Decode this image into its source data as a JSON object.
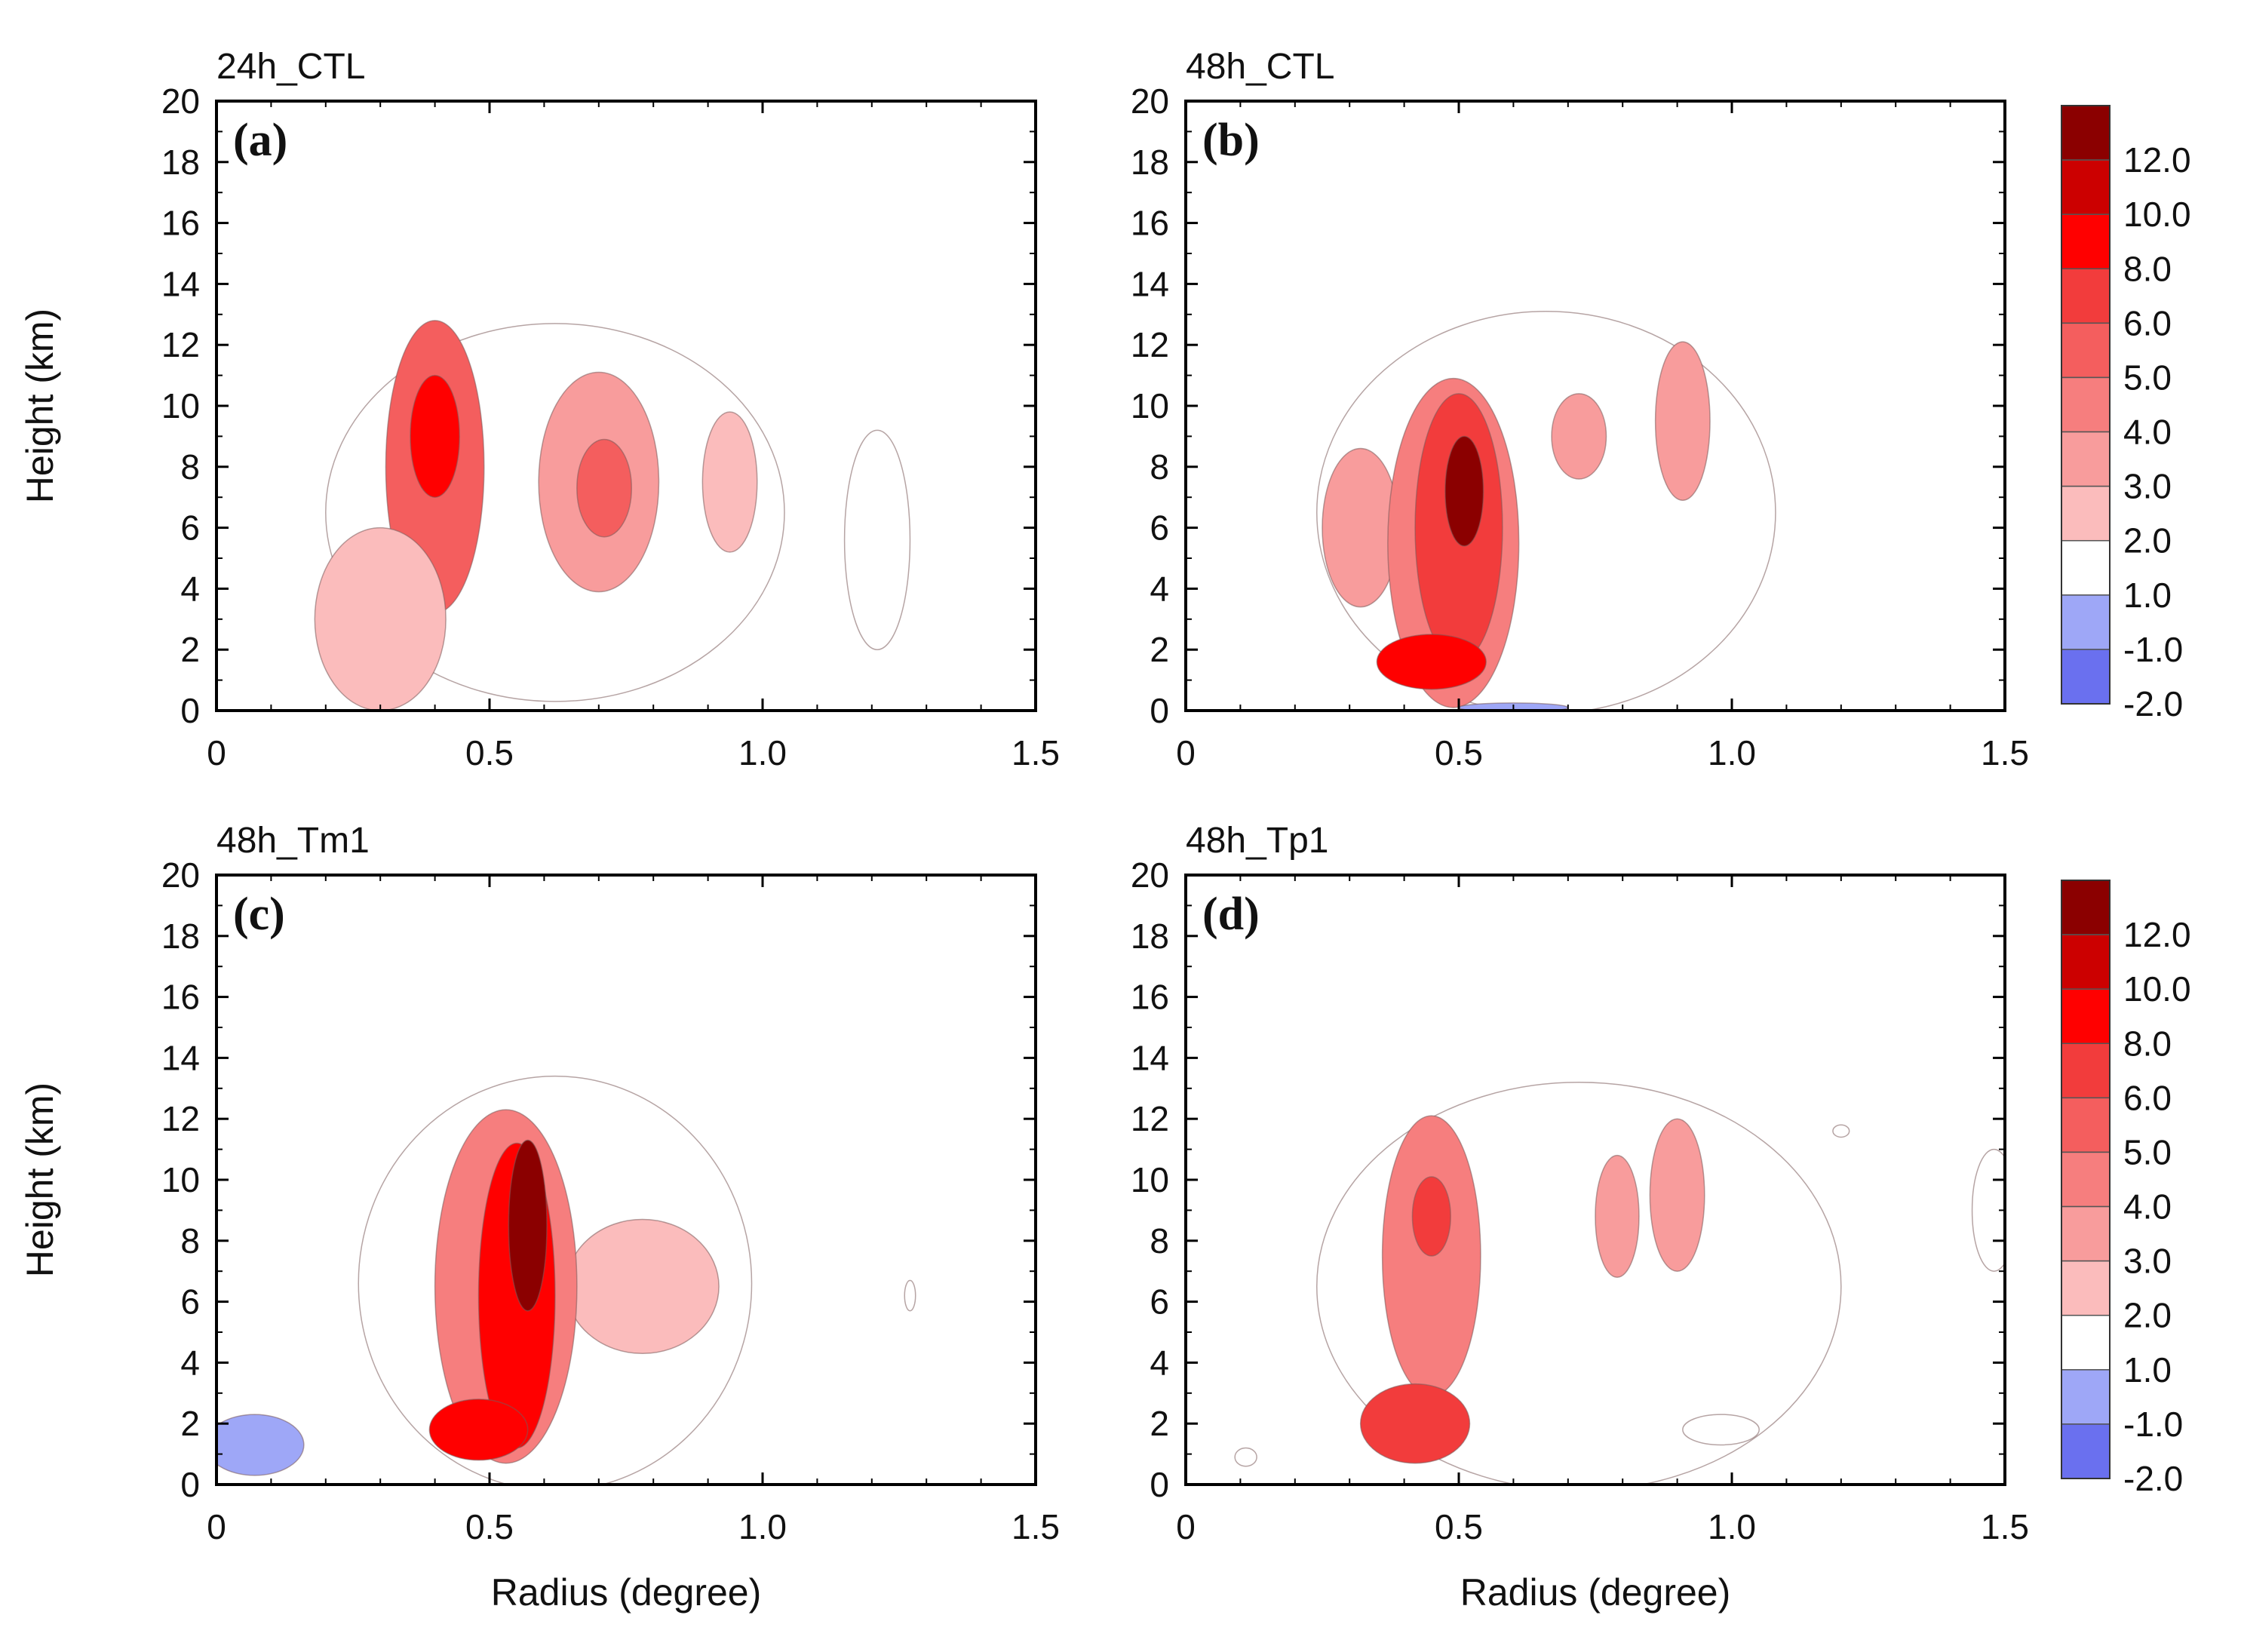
{
  "chart_data": [
    {
      "type": "heatmap",
      "letter": "(a)",
      "title": "24h_CTL",
      "xlabel": "",
      "ylabel": "Height (km)",
      "xlim": [
        0,
        1.5
      ],
      "ylim": [
        0,
        20
      ],
      "xticks": [
        "0",
        "0.5",
        "1.0",
        "1.5"
      ],
      "yticks": [
        "0",
        "2",
        "4",
        "6",
        "8",
        "10",
        "12",
        "14",
        "16",
        "18",
        "20"
      ],
      "features": [
        {
          "cx": 0.62,
          "cy": 6.5,
          "rx": 0.42,
          "ry": 6.2,
          "value": 1.0
        },
        {
          "cx": 0.4,
          "cy": 8.0,
          "rx": 0.09,
          "ry": 4.8,
          "value": 5.0
        },
        {
          "cx": 0.4,
          "cy": 9.0,
          "rx": 0.045,
          "ry": 2.0,
          "value": 8.0
        },
        {
          "cx": 0.3,
          "cy": 3.0,
          "rx": 0.12,
          "ry": 3.0,
          "value": 2.5
        },
        {
          "cx": 0.7,
          "cy": 7.5,
          "rx": 0.11,
          "ry": 3.6,
          "value": 3.0
        },
        {
          "cx": 0.71,
          "cy": 7.3,
          "rx": 0.05,
          "ry": 1.6,
          "value": 5.0
        },
        {
          "cx": 0.94,
          "cy": 7.5,
          "rx": 0.05,
          "ry": 2.3,
          "value": 2.5
        },
        {
          "cx": 1.21,
          "cy": 5.6,
          "rx": 0.06,
          "ry": 3.6,
          "value": 1.3
        }
      ]
    },
    {
      "type": "heatmap",
      "letter": "(b)",
      "title": "48h_CTL",
      "xlabel": "",
      "ylabel": "",
      "xlim": [
        0,
        1.5
      ],
      "ylim": [
        0,
        20
      ],
      "xticks": [
        "0",
        "0.5",
        "1.0",
        "1.5"
      ],
      "yticks": [
        "0",
        "2",
        "4",
        "6",
        "8",
        "10",
        "12",
        "14",
        "16",
        "18",
        "20"
      ],
      "features": [
        {
          "cx": 0.66,
          "cy": 6.5,
          "rx": 0.42,
          "ry": 6.6,
          "value": 1.2
        },
        {
          "cx": 0.32,
          "cy": 6.0,
          "rx": 0.07,
          "ry": 2.6,
          "value": 3.0
        },
        {
          "cx": 0.49,
          "cy": 5.5,
          "rx": 0.12,
          "ry": 5.4,
          "value": 4.0
        },
        {
          "cx": 0.5,
          "cy": 6.0,
          "rx": 0.08,
          "ry": 4.4,
          "value": 7.0
        },
        {
          "cx": 0.51,
          "cy": 7.2,
          "rx": 0.035,
          "ry": 1.8,
          "value": 12.0
        },
        {
          "cx": 0.45,
          "cy": 1.6,
          "rx": 0.1,
          "ry": 0.9,
          "value": 8.0
        },
        {
          "cx": 0.72,
          "cy": 9.0,
          "rx": 0.05,
          "ry": 1.4,
          "value": 3.0
        },
        {
          "cx": 0.91,
          "cy": 9.5,
          "rx": 0.05,
          "ry": 2.6,
          "value": 3.0
        },
        {
          "cx": 0.6,
          "cy": 0.1,
          "rx": 0.1,
          "ry": 0.15,
          "value": -1.5
        }
      ]
    },
    {
      "type": "heatmap",
      "letter": "(c)",
      "title": "48h_Tm1",
      "xlabel": "Radius (degree)",
      "ylabel": "Height (km)",
      "xlim": [
        0,
        1.5
      ],
      "ylim": [
        0,
        20
      ],
      "xticks": [
        "0",
        "0.5",
        "1.0",
        "1.5"
      ],
      "yticks": [
        "0",
        "2",
        "4",
        "6",
        "8",
        "10",
        "12",
        "14",
        "16",
        "18",
        "20"
      ],
      "features": [
        {
          "cx": 0.62,
          "cy": 6.6,
          "rx": 0.36,
          "ry": 6.8,
          "value": 1.2
        },
        {
          "cx": 0.78,
          "cy": 6.5,
          "rx": 0.14,
          "ry": 2.2,
          "value": 2.2
        },
        {
          "cx": 0.53,
          "cy": 6.5,
          "rx": 0.13,
          "ry": 5.8,
          "value": 4.0
        },
        {
          "cx": 0.55,
          "cy": 6.2,
          "rx": 0.07,
          "ry": 5.0,
          "value": 8.0
        },
        {
          "cx": 0.57,
          "cy": 8.5,
          "rx": 0.035,
          "ry": 2.8,
          "value": 12.0
        },
        {
          "cx": 0.48,
          "cy": 1.8,
          "rx": 0.09,
          "ry": 1.0,
          "value": 8.0
        },
        {
          "cx": 1.27,
          "cy": 6.2,
          "rx": 0.01,
          "ry": 0.5,
          "value": 1.2
        },
        {
          "cx": 0.07,
          "cy": 1.3,
          "rx": 0.09,
          "ry": 1.0,
          "value": -1.5
        }
      ]
    },
    {
      "type": "heatmap",
      "letter": "(d)",
      "title": "48h_Tp1",
      "xlabel": "Radius (degree)",
      "ylabel": "",
      "xlim": [
        0,
        1.5
      ],
      "ylim": [
        0,
        20
      ],
      "xticks": [
        "0",
        "0.5",
        "1.0",
        "1.5"
      ],
      "yticks": [
        "0",
        "2",
        "4",
        "6",
        "8",
        "10",
        "12",
        "14",
        "16",
        "18",
        "20"
      ],
      "features": [
        {
          "cx": 0.72,
          "cy": 6.5,
          "rx": 0.48,
          "ry": 6.7,
          "value": 1.2
        },
        {
          "cx": 0.45,
          "cy": 7.5,
          "rx": 0.09,
          "ry": 4.6,
          "value": 4.0
        },
        {
          "cx": 0.45,
          "cy": 8.8,
          "rx": 0.035,
          "ry": 1.3,
          "value": 7.0
        },
        {
          "cx": 0.42,
          "cy": 2.0,
          "rx": 0.1,
          "ry": 1.3,
          "value": 7.0
        },
        {
          "cx": 0.79,
          "cy": 8.8,
          "rx": 0.04,
          "ry": 2.0,
          "value": 3.0
        },
        {
          "cx": 0.9,
          "cy": 9.5,
          "rx": 0.05,
          "ry": 2.5,
          "value": 3.0
        },
        {
          "cx": 0.98,
          "cy": 1.8,
          "rx": 0.07,
          "ry": 0.5,
          "value": 1.2
        },
        {
          "cx": 1.48,
          "cy": 9.0,
          "rx": 0.04,
          "ry": 2.0,
          "value": 1.2
        },
        {
          "cx": 1.2,
          "cy": 11.6,
          "rx": 0.015,
          "ry": 0.2,
          "value": 1.2
        },
        {
          "cx": 0.11,
          "cy": 0.9,
          "rx": 0.02,
          "ry": 0.3,
          "value": 1.2
        }
      ]
    }
  ],
  "colorbar": {
    "levels": [
      "12.0",
      "10.0",
      "8.0",
      "6.0",
      "5.0",
      "4.0",
      "3.0",
      "2.0",
      "1.0",
      "-1.0",
      "-2.0"
    ],
    "colors": [
      "#8b0000",
      "#cc0000",
      "#ff0000",
      "#f23c3c",
      "#f45e5e",
      "#f67e7e",
      "#f89c9c",
      "#fbbcbc",
      "#ffffff",
      "#9ea7f7",
      "#6a70ef"
    ]
  }
}
